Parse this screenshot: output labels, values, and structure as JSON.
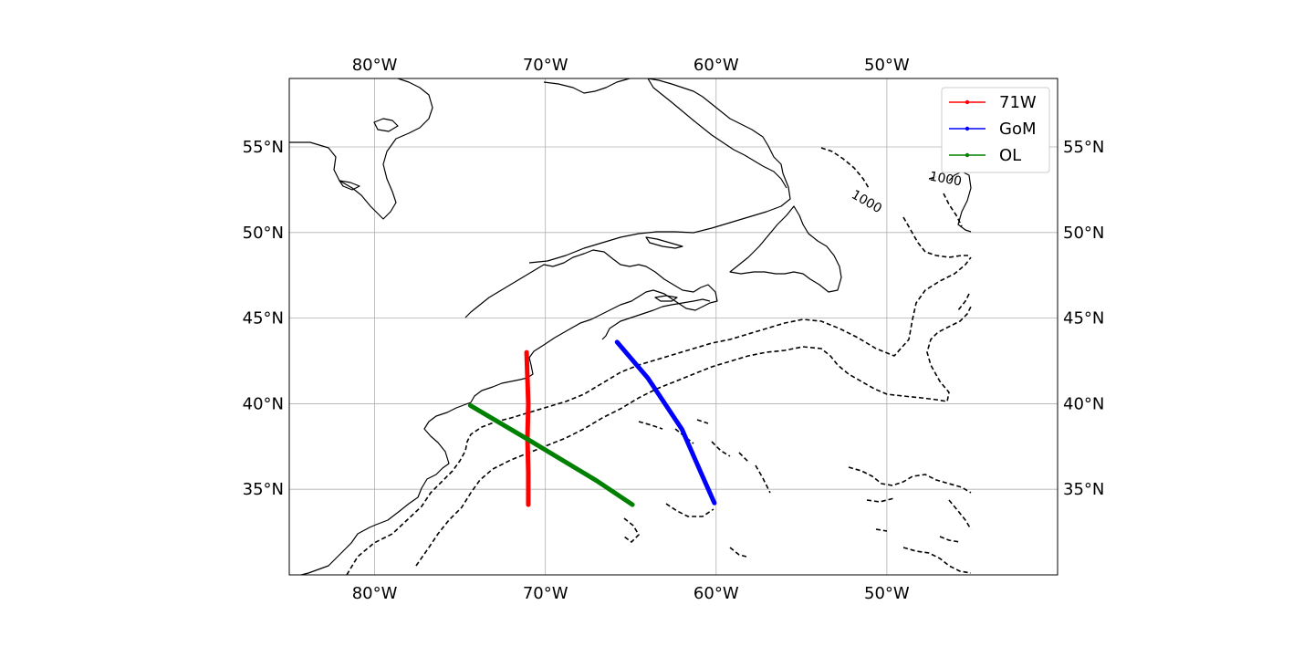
{
  "map": {
    "lon_range": [
      -85,
      -40
    ],
    "lat_range": [
      30,
      59
    ],
    "lon_ticks": [
      {
        "value": -80,
        "label": "80°W"
      },
      {
        "value": -70,
        "label": "70°W"
      },
      {
        "value": -60,
        "label": "60°W"
      },
      {
        "value": -50,
        "label": "50°W"
      }
    ],
    "lat_ticks": [
      {
        "value": 35,
        "label": "35°N"
      },
      {
        "value": 40,
        "label": "40°N"
      },
      {
        "value": 45,
        "label": "45°N"
      },
      {
        "value": 50,
        "label": "50°N"
      },
      {
        "value": 55,
        "label": "55°N"
      }
    ],
    "gridlines": true,
    "isobath_labels": [
      {
        "text": "1000",
        "lon": -51.3,
        "lat": 51.6,
        "rotation": 30
      },
      {
        "text": "1000",
        "lon": -46.6,
        "lat": 52.9,
        "rotation": 10
      }
    ],
    "legend": {
      "position": "top-right",
      "entries": [
        {
          "label": "71W",
          "color": "#ff0000"
        },
        {
          "label": "GoM",
          "color": "#0000ff"
        },
        {
          "label": "OL",
          "color": "#008000"
        }
      ]
    },
    "tracks": [
      {
        "name": "71W",
        "color": "#ff0000",
        "points": [
          [
            -71.0,
            34.1
          ],
          [
            -71.0,
            36.0
          ],
          [
            -71.05,
            38.0
          ],
          [
            -71.0,
            40.0
          ],
          [
            -71.05,
            41.5
          ],
          [
            -71.1,
            43.0
          ]
        ]
      },
      {
        "name": "GoM",
        "color": "#0000ff",
        "points": [
          [
            -65.8,
            43.6
          ],
          [
            -64.0,
            41.5
          ],
          [
            -62.0,
            38.5
          ],
          [
            -60.9,
            36.0
          ],
          [
            -60.1,
            34.2
          ]
        ]
      },
      {
        "name": "OL",
        "color": "#008000",
        "points": [
          [
            -74.4,
            39.9
          ],
          [
            -71.0,
            37.9
          ],
          [
            -67.0,
            35.5
          ],
          [
            -64.9,
            34.1
          ]
        ]
      }
    ]
  }
}
